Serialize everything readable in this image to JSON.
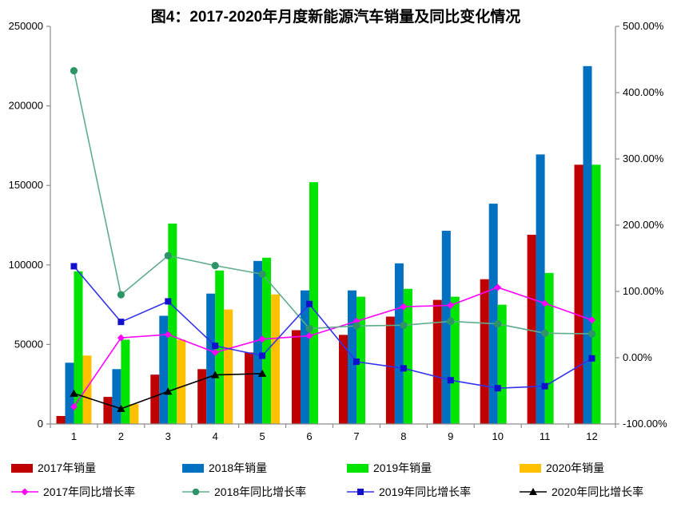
{
  "title": "图4：2017-2020年月度新能源汽车销量及同比变化情况",
  "chart_data": {
    "type": "bar",
    "subtype": "grouped-bars-with-lines-dual-axis",
    "categories": [
      "1",
      "2",
      "3",
      "4",
      "5",
      "6",
      "7",
      "8",
      "9",
      "10",
      "11",
      "12"
    ],
    "xlabel": "",
    "left_axis": {
      "ylabel": "",
      "min": 0,
      "max": 250000,
      "step": 50000,
      "tick_labels": [
        "0",
        "50000",
        "100000",
        "150000",
        "200000",
        "250000"
      ]
    },
    "right_axis": {
      "ylabel": "",
      "min": -100,
      "max": 500,
      "step": 100,
      "tick_labels": [
        "-100.00%",
        "0.00%",
        "100.00%",
        "200.00%",
        "300.00%",
        "400.00%",
        "500.00%"
      ]
    },
    "grid": "off",
    "legend_position": "bottom",
    "bar_series": [
      {
        "name": "2017年销量",
        "color": "#C00000",
        "values": [
          5000,
          17000,
          31000,
          34500,
          45000,
          59000,
          56000,
          67500,
          78000,
          91000,
          119000,
          163000
        ]
      },
      {
        "name": "2018年销量",
        "color": "#0070C0",
        "values": [
          38500,
          34500,
          68000,
          82000,
          102500,
          84000,
          84000,
          101000,
          121500,
          138500,
          169500,
          225000
        ]
      },
      {
        "name": "2019年销量",
        "color": "#00E400",
        "values": [
          96000,
          53000,
          126000,
          96500,
          104500,
          152000,
          80000,
          85000,
          80000,
          75000,
          95000,
          163000
        ]
      },
      {
        "name": "2020年销量",
        "color": "#FFC000",
        "values": [
          43000,
          12500,
          53000,
          72000,
          81500,
          null,
          null,
          null,
          null,
          null,
          null,
          null
        ]
      }
    ],
    "line_series": [
      {
        "name": "2017年同比增长率",
        "color": "#FF00FF",
        "marker_color": "#FF00FF",
        "marker": "diamond",
        "values_pct": [
          -74,
          30,
          35,
          8,
          28,
          33,
          55,
          77,
          79,
          106,
          82,
          57
        ]
      },
      {
        "name": "2018年同比增长率",
        "color": "#5FAD8C",
        "marker_color": "#2E9467",
        "marker": "circle",
        "values_pct": [
          433,
          95,
          154,
          139,
          126,
          44,
          48,
          49,
          55,
          51,
          37,
          36
        ]
      },
      {
        "name": "2019年同比增长率",
        "color": "#3333EE",
        "marker_color": "#1111CC",
        "marker": "square",
        "values_pct": [
          138,
          54,
          85,
          18,
          3,
          81,
          -6,
          -16,
          -34,
          -46,
          -43,
          -1
        ]
      },
      {
        "name": "2020年同比增长率",
        "color": "#000000",
        "marker_color": "#000000",
        "marker": "triangle",
        "values_pct": [
          -54,
          -77,
          -51,
          -26,
          -24,
          null,
          null,
          null,
          null,
          null,
          null,
          null
        ]
      }
    ]
  }
}
